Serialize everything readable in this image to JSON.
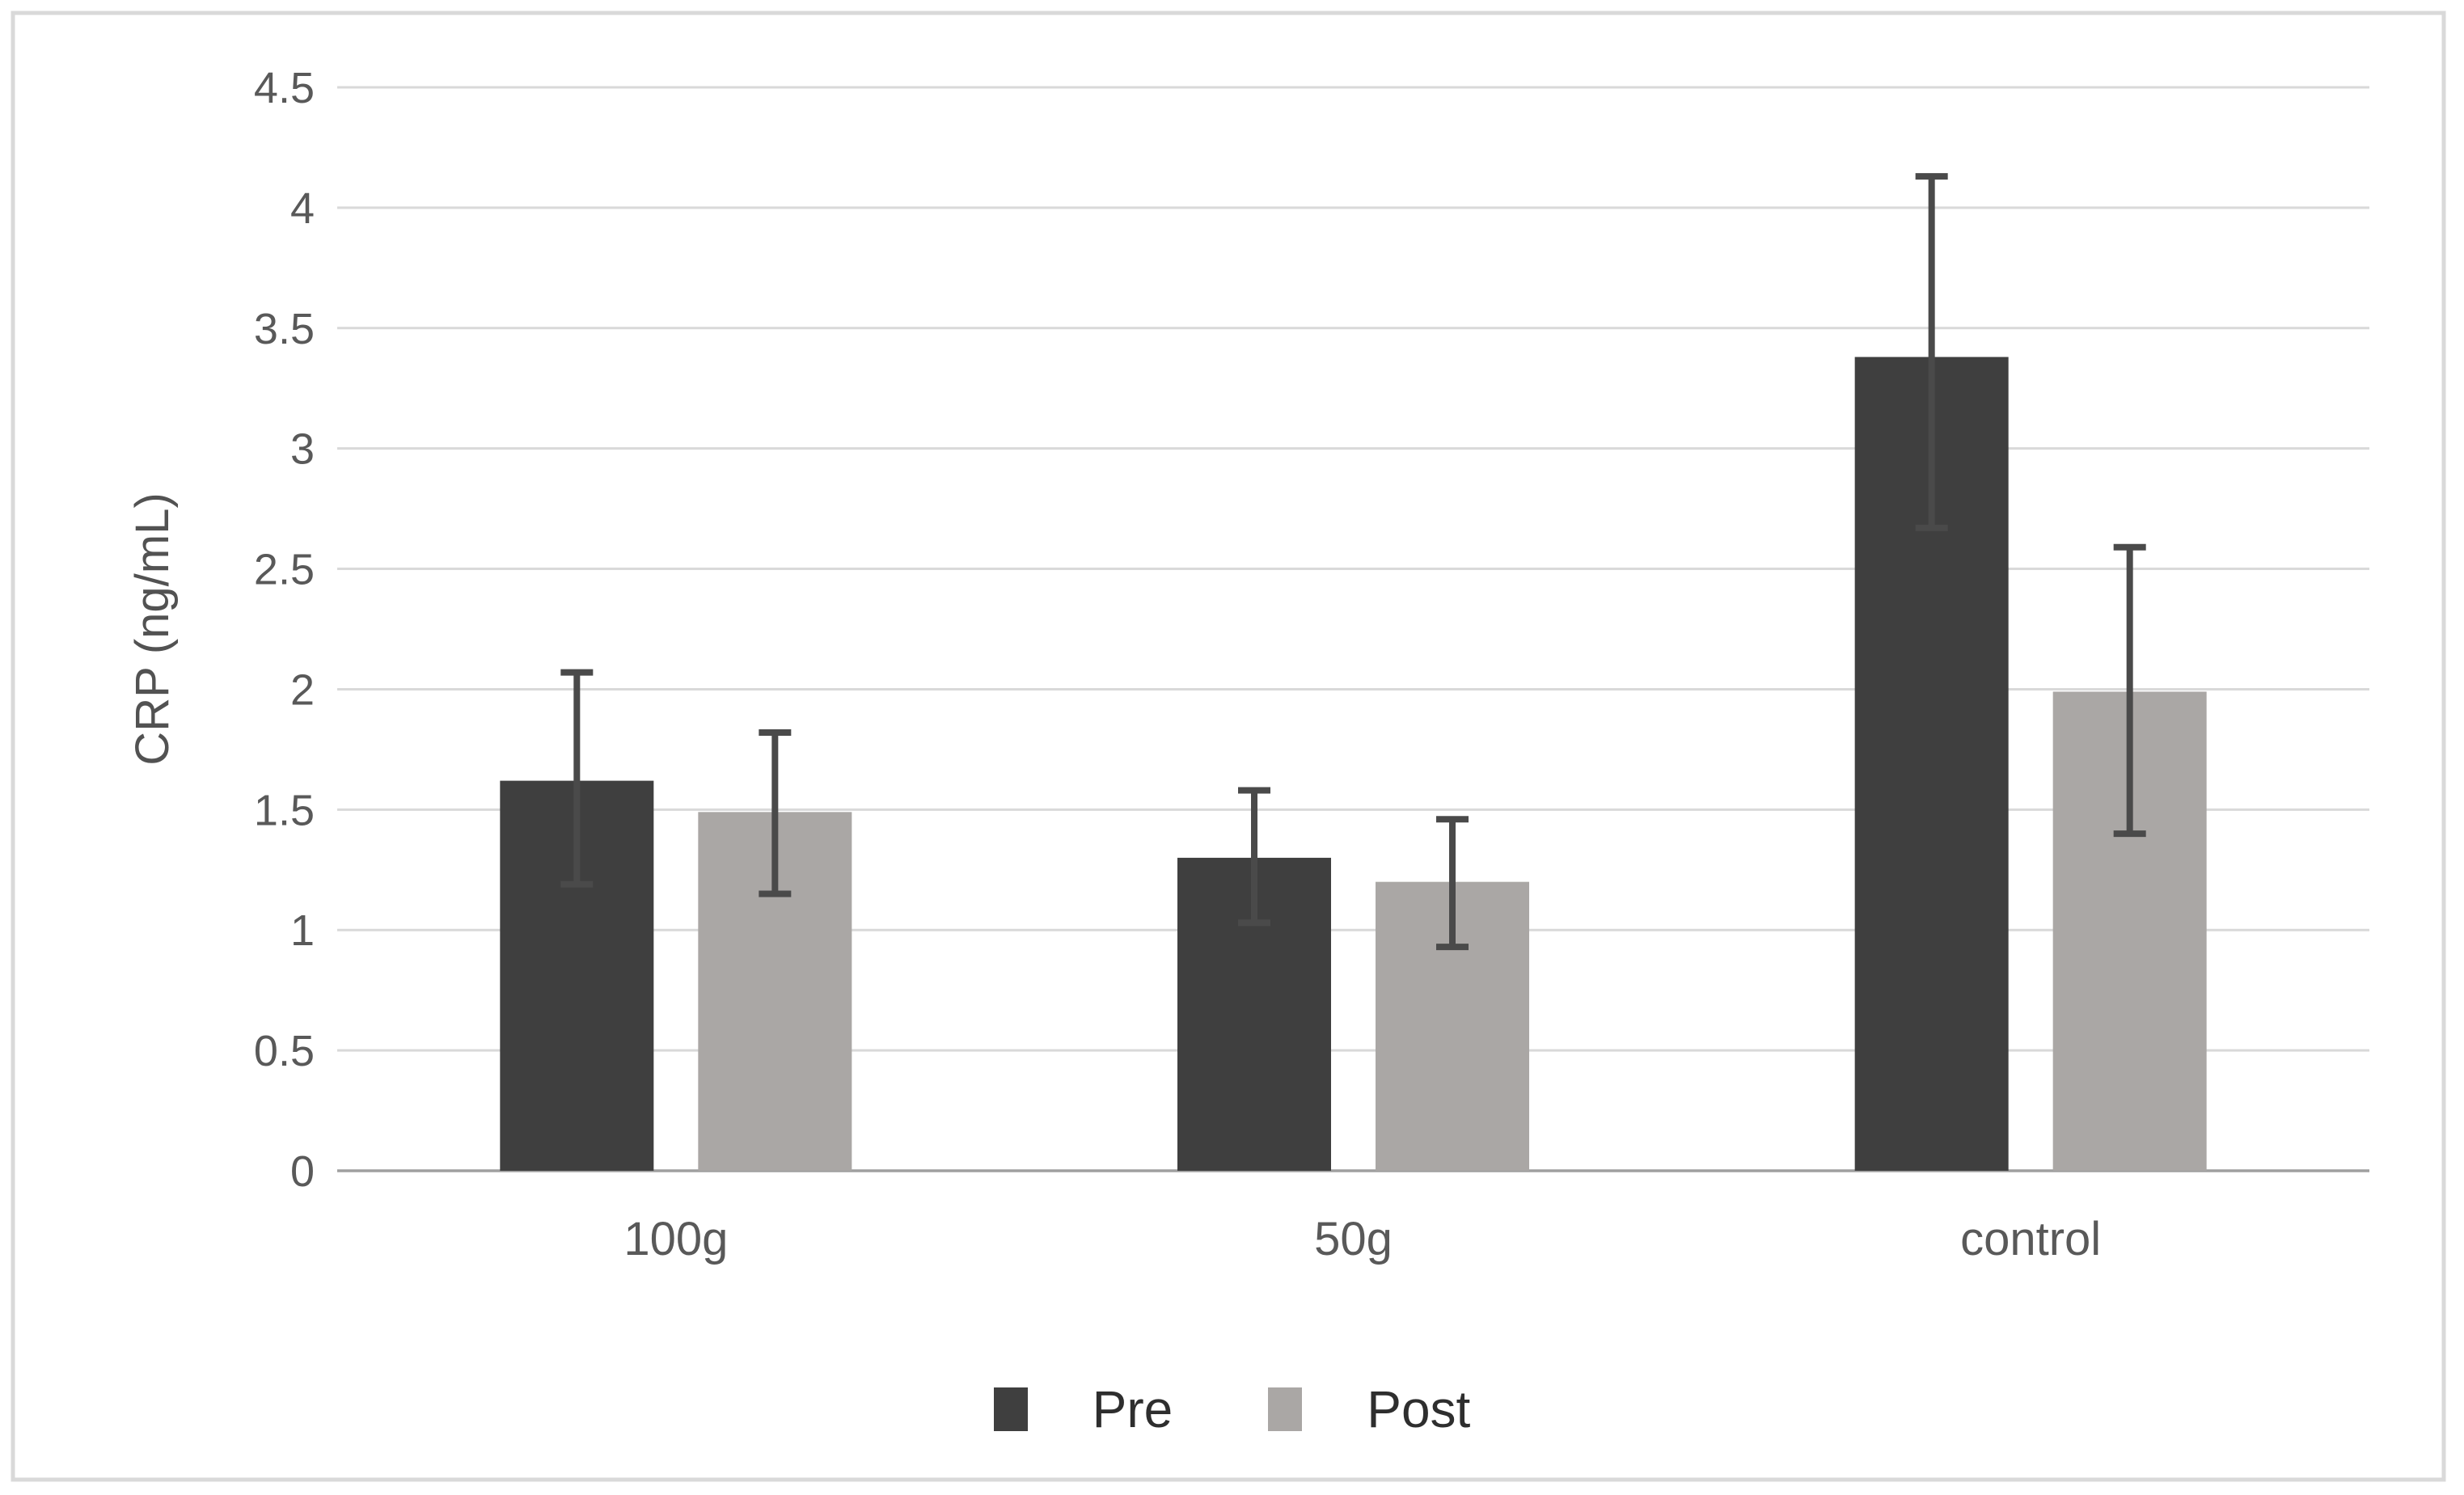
{
  "frame": {
    "background": "#ffffff",
    "border_color": "#d9d9d9"
  },
  "chart_data": {
    "type": "bar",
    "title": "",
    "xlabel": "",
    "ylabel": "CRP (ng/mL)",
    "categories": [
      "100g",
      "50g",
      "control"
    ],
    "series": [
      {
        "name": "Pre",
        "color": "#3f3f3f",
        "values": [
          1.62,
          1.3,
          3.38
        ],
        "error_high": [
          2.07,
          1.58,
          4.13
        ],
        "error_low": [
          1.19,
          1.03,
          2.67
        ]
      },
      {
        "name": "Post",
        "color": "#aaa7a5",
        "values": [
          1.49,
          1.2,
          1.99
        ],
        "error_high": [
          1.82,
          1.46,
          2.59
        ],
        "error_low": [
          1.15,
          0.93,
          1.4
        ]
      }
    ],
    "ylim": [
      0,
      4.5
    ],
    "ytick_step": 0.5,
    "ytick_labels": [
      "0",
      "0.5",
      "1",
      "1.5",
      "2",
      "2.5",
      "3",
      "3.5",
      "4",
      "4.5"
    ],
    "grid": true,
    "gridline_color": "#d9d9d9",
    "axis_line_color": "#9f9f9f",
    "error_bar_color": "#4a4a4a",
    "tick_label_color": "#595959",
    "axis_title_color": "#525252",
    "legend_position": "bottom"
  }
}
